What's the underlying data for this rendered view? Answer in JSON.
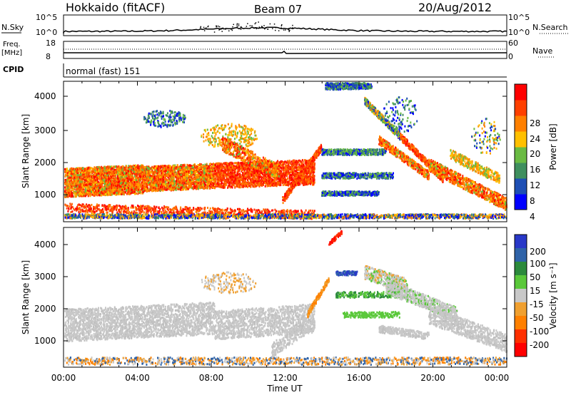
{
  "header": {
    "station": "Hokkaido (fitACF)",
    "beam": "Beam 07",
    "date": "20/Aug/2012"
  },
  "strip": {
    "nsky_label": "N.Sky",
    "nsearch_label": "N.Search",
    "nsky_ticks": [
      "10^5",
      "10^0"
    ],
    "nsearch_ticks": [
      "10^5",
      "10^0"
    ],
    "freq_label_line1": "Freq.",
    "freq_label_line2": "[MHz]",
    "freq_ticks": [
      "18",
      "8"
    ],
    "nave_label": "Nave",
    "nave_ticks": [
      "60",
      "0"
    ],
    "cpid_label": "CPID",
    "cpid_value": "normal (fast) 151"
  },
  "panels": {
    "power": {
      "ylabel": "Slant Range [km]",
      "yticks": [
        "4000",
        "3000",
        "2000",
        "1000"
      ],
      "colorbar_label": "Power [dB]",
      "colorbar_ticks": [
        "28",
        "24",
        "20",
        "16",
        "12",
        "8",
        "4"
      ],
      "colors": [
        "#0000ff",
        "#1e4fb4",
        "#3f8f5e",
        "#6abb43",
        "#ffc000",
        "#ff8000",
        "#ff4000",
        "#ff0000"
      ]
    },
    "velocity": {
      "ylabel": "Slant Range [km]",
      "yticks": [
        "4000",
        "3000",
        "2000",
        "1000"
      ],
      "colorbar_label": "Velocity [m s⁻¹]",
      "colorbar_ticks": [
        "200",
        "100",
        "50",
        "15",
        "-15",
        "-50",
        "-100",
        "-200"
      ],
      "colors": [
        "#2838c8",
        "#2f63a8",
        "#2c8a3c",
        "#5ac83a",
        "#c8c8c8",
        "#f0a030",
        "#ff8000",
        "#ff3000",
        "#ff0000"
      ]
    }
  },
  "xaxis": {
    "label": "Time UT",
    "ticks": [
      "00:00",
      "04:00",
      "08:00",
      "12:00",
      "16:00",
      "20:00",
      "00:00"
    ]
  }
}
